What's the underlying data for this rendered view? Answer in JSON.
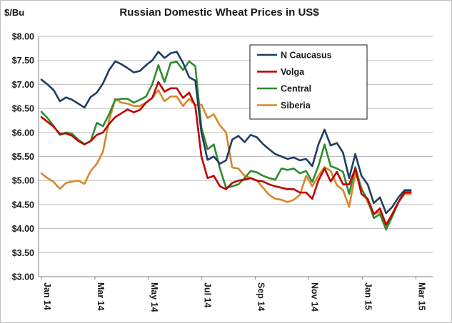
{
  "chart_data": {
    "type": "line",
    "title": "Russian Domestic Wheat Prices in US$",
    "ylabel": "$/Bu",
    "xlabel": "",
    "ylim": [
      3.0,
      8.0
    ],
    "yticks": [
      "$3.00",
      "$3.50",
      "$4.00",
      "$4.50",
      "$5.00",
      "$5.50",
      "$6.00",
      "$6.50",
      "$7.00",
      "$7.50",
      "$8.00"
    ],
    "xticks": [
      "Jan 14",
      "Mar 14",
      "May 14",
      "Jul 14",
      "Sep 14",
      "Nov 14",
      "Jan 15",
      "Mar 15"
    ],
    "grid": "horizontal",
    "legend_position": "top-right",
    "series": [
      {
        "name": "N Caucasus",
        "color": "#1f3d64",
        "values": [
          7.1,
          7.0,
          6.88,
          6.65,
          6.73,
          6.68,
          6.6,
          6.52,
          6.74,
          6.83,
          7.02,
          7.3,
          7.48,
          7.42,
          7.34,
          7.25,
          7.28,
          7.4,
          7.5,
          7.68,
          7.55,
          7.65,
          7.68,
          7.45,
          7.15,
          7.08,
          6.0,
          5.43,
          5.5,
          5.35,
          5.42,
          5.85,
          5.93,
          5.8,
          5.95,
          5.9,
          5.76,
          5.65,
          5.55,
          5.5,
          5.45,
          5.48,
          5.42,
          5.45,
          5.3,
          5.75,
          6.06,
          5.73,
          5.78,
          5.58,
          5.05,
          5.55,
          5.1,
          4.92,
          4.53,
          4.65,
          4.32,
          4.45,
          4.65,
          4.8,
          4.8
        ]
      },
      {
        "name": "Volga",
        "color": "#c00000",
        "values": [
          6.32,
          6.22,
          6.12,
          5.97,
          5.98,
          5.93,
          5.82,
          5.75,
          5.82,
          5.95,
          6.0,
          6.18,
          6.32,
          6.4,
          6.48,
          6.42,
          6.47,
          6.62,
          6.72,
          7.05,
          6.85,
          6.92,
          6.92,
          6.72,
          6.83,
          6.55,
          5.5,
          5.05,
          5.1,
          4.88,
          4.82,
          4.95,
          5.0,
          5.02,
          5.05,
          5.0,
          4.98,
          4.92,
          4.88,
          4.85,
          4.82,
          4.82,
          4.75,
          4.75,
          4.62,
          5.0,
          5.25,
          4.98,
          5.18,
          4.92,
          4.92,
          5.25,
          4.72,
          4.62,
          4.3,
          4.42,
          4.08,
          4.3,
          4.55,
          4.75,
          4.75
        ]
      },
      {
        "name": "Central",
        "color": "#2e8b2e",
        "values": [
          6.43,
          6.3,
          6.13,
          5.95,
          6.0,
          5.97,
          5.85,
          5.76,
          5.82,
          6.2,
          6.13,
          6.38,
          6.68,
          6.7,
          6.7,
          6.62,
          6.68,
          6.75,
          7.0,
          7.4,
          7.05,
          7.45,
          7.47,
          7.3,
          7.48,
          7.38,
          6.1,
          5.65,
          5.75,
          5.25,
          4.85,
          4.88,
          4.92,
          5.05,
          5.2,
          5.17,
          5.1,
          5.05,
          5.02,
          5.25,
          5.22,
          5.25,
          5.15,
          5.2,
          4.97,
          5.3,
          5.75,
          5.3,
          5.25,
          5.18,
          4.72,
          5.28,
          4.82,
          4.6,
          4.22,
          4.3,
          3.98,
          4.25,
          4.55,
          4.78,
          4.78
        ]
      },
      {
        "name": "Siberia",
        "color": "#d9862a",
        "values": [
          5.15,
          5.05,
          4.97,
          4.83,
          4.95,
          4.98,
          5.0,
          4.93,
          5.2,
          5.35,
          5.6,
          6.25,
          6.7,
          6.62,
          6.6,
          6.55,
          6.55,
          6.62,
          6.72,
          6.88,
          6.65,
          6.75,
          6.75,
          6.55,
          6.7,
          6.57,
          6.58,
          6.3,
          6.38,
          6.15,
          6.0,
          5.27,
          5.25,
          5.1,
          5.05,
          5.0,
          4.85,
          4.7,
          4.62,
          4.6,
          4.55,
          4.6,
          4.7,
          5.1,
          4.88,
          5.1,
          5.28,
          5.2,
          4.9,
          4.8,
          4.45,
          5.15,
          4.85,
          4.55,
          4.3,
          4.35,
          4.05,
          4.3,
          4.55,
          4.72,
          4.72
        ]
      }
    ]
  }
}
